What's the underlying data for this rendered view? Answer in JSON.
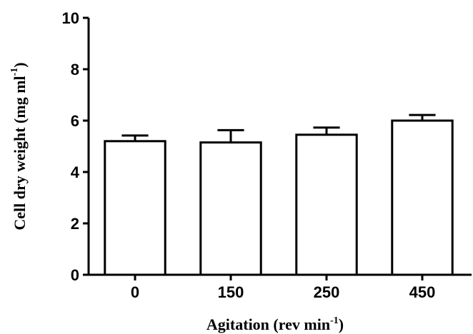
{
  "chart_data": {
    "type": "bar",
    "title": "",
    "xlabel": {
      "text": "Agitation (rev min",
      "superscript": "-1",
      "suffix": ")"
    },
    "ylabel": {
      "text": "Cell dry weight (mg ml",
      "superscript": "-1",
      "suffix": ")"
    },
    "categories": [
      "0",
      "150",
      "250",
      "450"
    ],
    "values": [
      5.2,
      5.15,
      5.45,
      6.0
    ],
    "errors": [
      0.22,
      0.48,
      0.28,
      0.22
    ],
    "ylim": [
      0,
      10
    ],
    "yticks": [
      0,
      2,
      4,
      6,
      8,
      10
    ],
    "bar_fill": "#ffffff",
    "bar_stroke": "#000000",
    "grid": false,
    "legend": "none"
  }
}
